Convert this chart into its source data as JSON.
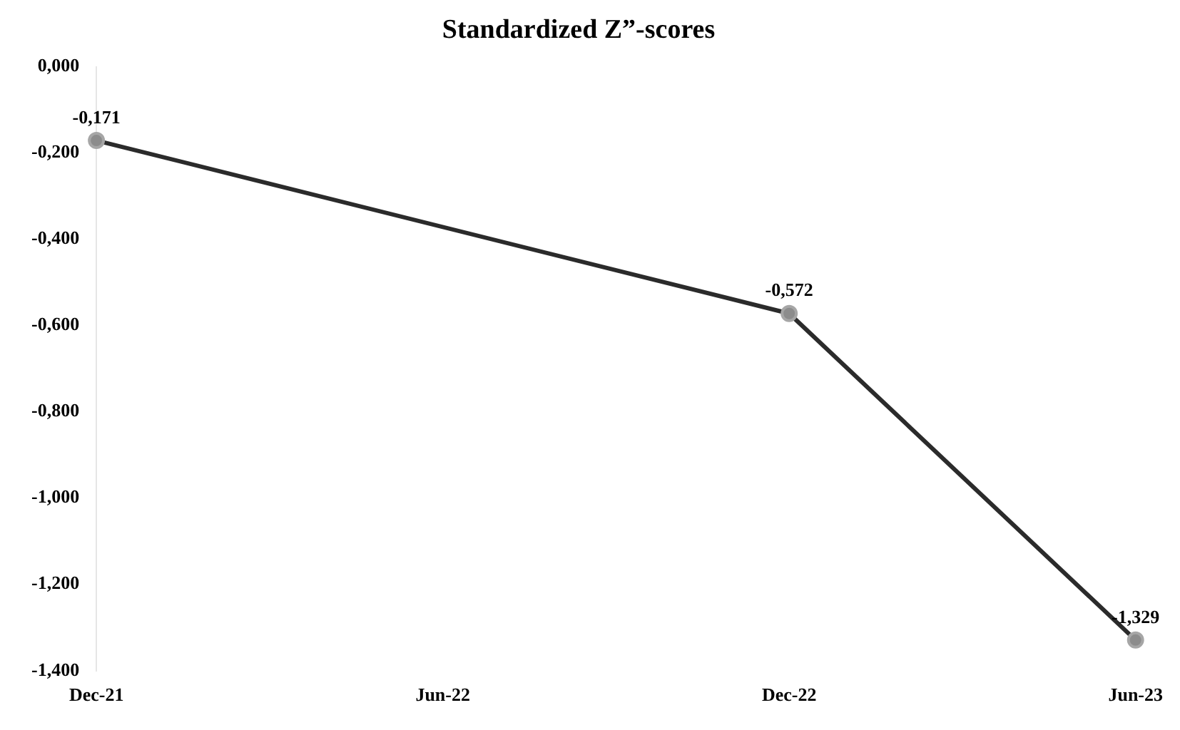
{
  "chart_data": {
    "type": "line",
    "title": "Standardized Z”-scores",
    "categories": [
      "Dec-21",
      "Jun-22",
      "Dec-22",
      "Jun-23"
    ],
    "series": [
      {
        "color": "#2b2b2b",
        "values": [
          -0.171,
          null,
          -0.572,
          -1.329
        ],
        "value_labels": [
          "-0,171",
          null,
          "-0,572",
          "-1,329"
        ]
      }
    ],
    "ylim": [
      -1.4,
      0
    ],
    "yticks": [
      {
        "value": 0,
        "label": "0,000"
      },
      {
        "value": -0.2,
        "label": "-0,200"
      },
      {
        "value": -0.4,
        "label": "-0,400"
      },
      {
        "value": -0.6,
        "label": "-0,600"
      },
      {
        "value": -0.8,
        "label": "-0,800"
      },
      {
        "value": -1,
        "label": "-1,000"
      },
      {
        "value": -1.2,
        "label": "-1,200"
      },
      {
        "value": -1.4,
        "label": "-1,400"
      }
    ],
    "grid": false,
    "legend": false,
    "marker": "circle",
    "line_style": "solid"
  }
}
